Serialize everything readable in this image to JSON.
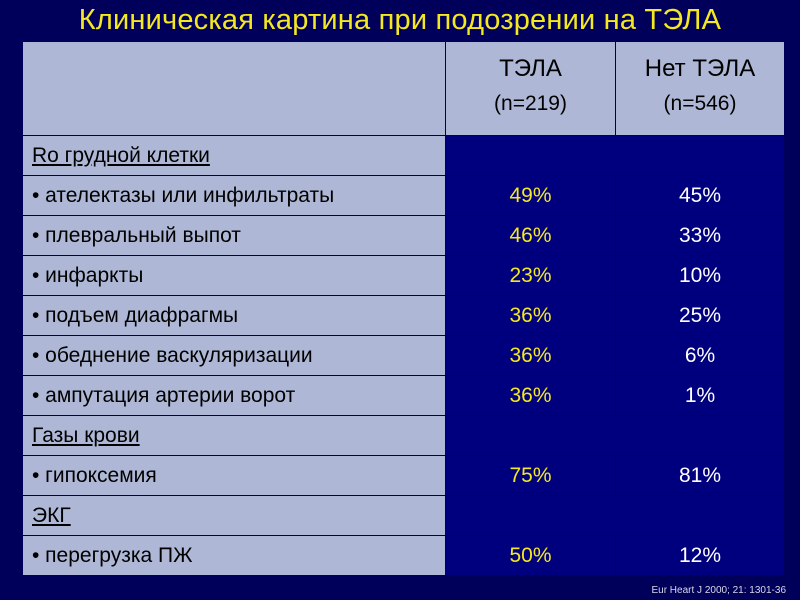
{
  "title": "Клиническая картина при подозрении на ТЭЛА",
  "columns": [
    {
      "name": "ТЭЛА",
      "n": "(n=219)"
    },
    {
      "name": "Нет ТЭЛА",
      "n": "(n=546)"
    }
  ],
  "rows": [
    {
      "label": "Ro грудной клетки",
      "section": true,
      "v1": "",
      "v2": ""
    },
    {
      "label": "• ателектазы или инфильтраты",
      "section": false,
      "v1": "49%",
      "v2": "45%"
    },
    {
      "label": "• плевральный выпот",
      "section": false,
      "v1": "46%",
      "v2": "33%"
    },
    {
      "label": "• инфаркты",
      "section": false,
      "v1": "23%",
      "v2": "10%"
    },
    {
      "label": "• подъем диафрагмы",
      "section": false,
      "v1": "36%",
      "v2": "25%"
    },
    {
      "label": "• обеднение васкуляризации",
      "section": false,
      "v1": "36%",
      "v2": "6%"
    },
    {
      "label": "• ампутация артерии ворот",
      "section": false,
      "v1": "36%",
      "v2": "1%"
    },
    {
      "label": "Газы крови",
      "section": true,
      "v1": "",
      "v2": ""
    },
    {
      "label": "• гипоксемия",
      "section": false,
      "v1": "75%",
      "v2": "81%"
    },
    {
      "label": "ЭКГ",
      "section": true,
      "v1": "",
      "v2": ""
    },
    {
      "label": "• перегрузка ПЖ",
      "section": false,
      "v1": "50%",
      "v2": "12%"
    }
  ],
  "source": "Eur Heart J 2000; 21: 1301-36",
  "colors": {
    "background": "#00005a",
    "cell": "#00007e",
    "label_cell": "#aeb8d6",
    "accent": "#f4e81e"
  }
}
